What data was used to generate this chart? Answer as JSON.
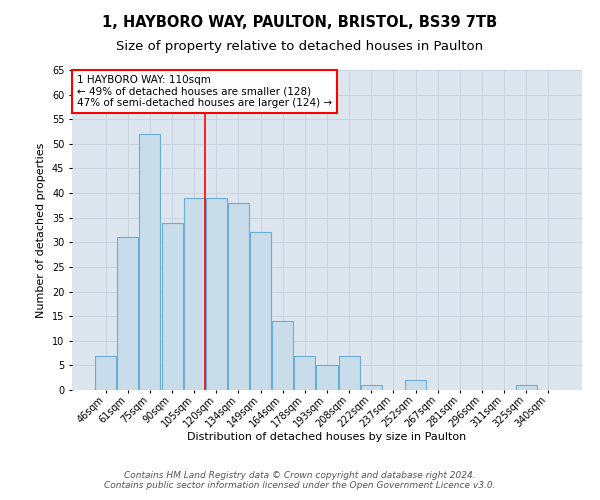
{
  "title_line1": "1, HAYBORO WAY, PAULTON, BRISTOL, BS39 7TB",
  "title_line2": "Size of property relative to detached houses in Paulton",
  "xlabel": "Distribution of detached houses by size in Paulton",
  "ylabel": "Number of detached properties",
  "categories": [
    "46sqm",
    "61sqm",
    "75sqm",
    "90sqm",
    "105sqm",
    "120sqm",
    "134sqm",
    "149sqm",
    "164sqm",
    "178sqm",
    "193sqm",
    "208sqm",
    "222sqm",
    "237sqm",
    "252sqm",
    "267sqm",
    "281sqm",
    "296sqm",
    "311sqm",
    "325sqm",
    "340sqm"
  ],
  "values": [
    7,
    31,
    52,
    34,
    39,
    39,
    38,
    32,
    14,
    7,
    5,
    7,
    1,
    0,
    2,
    0,
    0,
    0,
    0,
    1,
    0
  ],
  "bar_color": "#c9dcea",
  "bar_edge_color": "#6aaed6",
  "grid_color": "#c8d4e0",
  "background_color": "#dde6ef",
  "annotation_box_text": "1 HAYBORO WAY: 110sqm\n← 49% of detached houses are smaller (128)\n47% of semi-detached houses are larger (124) →",
  "annotation_box_color": "white",
  "annotation_box_edge_color": "red",
  "vline_x_index": 5.0,
  "vline_color": "red",
  "ylim": [
    0,
    65
  ],
  "yticks": [
    0,
    5,
    10,
    15,
    20,
    25,
    30,
    35,
    40,
    45,
    50,
    55,
    60,
    65
  ],
  "footer_line1": "Contains HM Land Registry data © Crown copyright and database right 2024.",
  "footer_line2": "Contains public sector information licensed under the Open Government Licence v3.0.",
  "title_fontsize": 10.5,
  "subtitle_fontsize": 9.5,
  "axis_label_fontsize": 8,
  "tick_fontsize": 7,
  "annotation_fontsize": 7.5,
  "footer_fontsize": 6.5
}
